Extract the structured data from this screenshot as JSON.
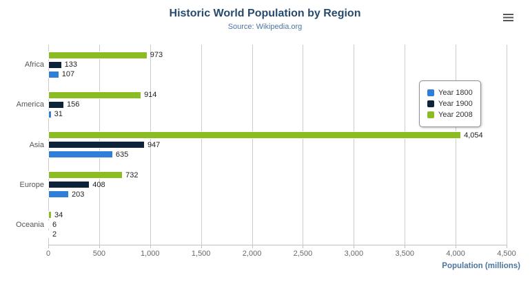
{
  "chart_data": {
    "type": "bar",
    "orientation": "horizontal",
    "title": "Historic World Population by Region",
    "subtitle": "Source: Wikipedia.org",
    "xlabel": "Population (millions)",
    "categories": [
      "Africa",
      "America",
      "Asia",
      "Europe",
      "Oceania"
    ],
    "series": [
      {
        "name": "Year 1800",
        "color": "#2f7ed8",
        "values": [
          107,
          31,
          635,
          203,
          2
        ]
      },
      {
        "name": "Year 1900",
        "color": "#0d233a",
        "values": [
          133,
          156,
          947,
          408,
          6
        ]
      },
      {
        "name": "Year 2008",
        "color": "#8bbc21",
        "values": [
          973,
          914,
          4054,
          732,
          34
        ]
      }
    ],
    "bar_display_order_top_to_bottom": [
      "Year 2008",
      "Year 1900",
      "Year 1800"
    ],
    "xlim": [
      0,
      4500
    ],
    "xticks": [
      0,
      500,
      1000,
      1500,
      2000,
      2500,
      3000,
      3500,
      4000,
      4500
    ],
    "grid": true,
    "legend_position": "right",
    "data_labels": true
  },
  "menu": {
    "icon": "hamburger-icon"
  }
}
